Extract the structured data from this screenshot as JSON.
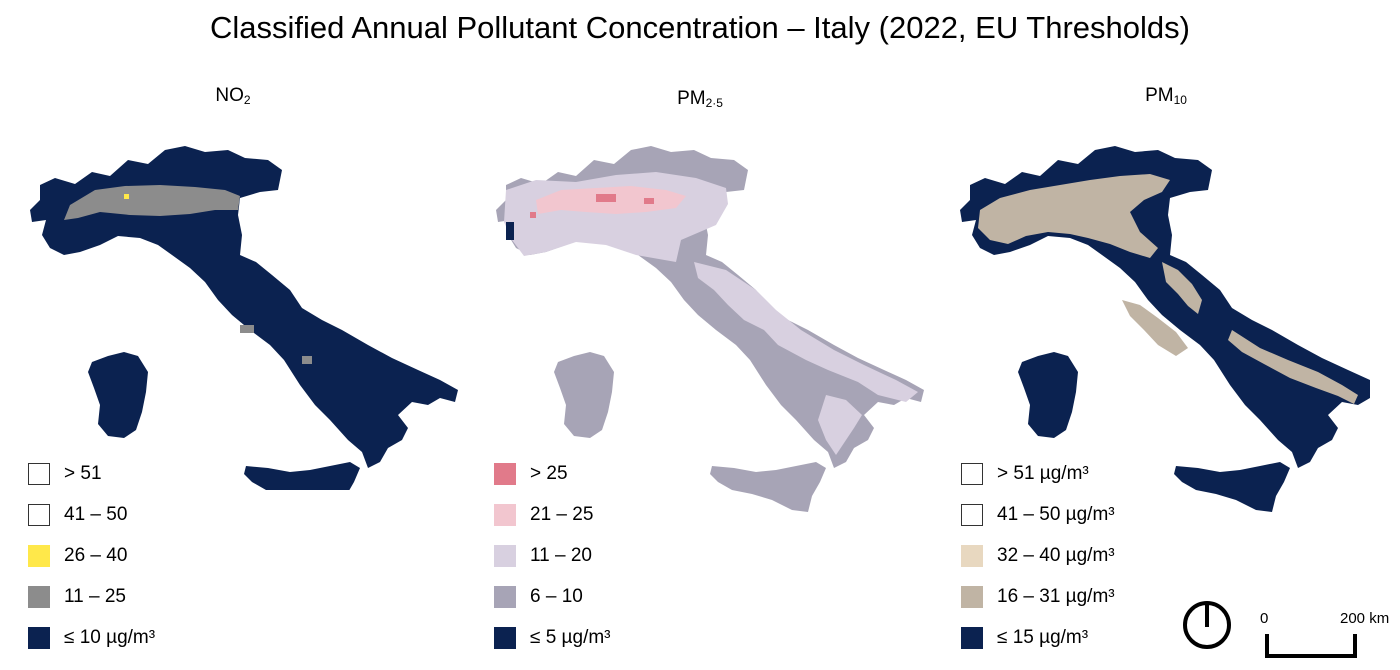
{
  "title": "Classified Annual Pollutant Concentration – Italy (2022, EU Thresholds)",
  "panels": [
    {
      "id": "no2",
      "title_main": "NO",
      "title_sub": "2",
      "colors": {
        "land": "#0b2250",
        "class2": "#8c8c8c",
        "class3": "#ffe84a",
        "class4": "#ffffff"
      },
      "legend": [
        {
          "label": "> 51",
          "color": "#ffffff",
          "outline": true
        },
        {
          "label": "41 – 50",
          "color": "#ffffff",
          "outline": true
        },
        {
          "label": "26 – 40",
          "color": "#ffe84a",
          "outline": false
        },
        {
          "label": "11 – 25",
          "color": "#8c8c8c",
          "outline": false
        },
        {
          "label": "≤ 10 µg/m³",
          "color": "#0b2250",
          "outline": false
        }
      ]
    },
    {
      "id": "pm25",
      "title_main": "PM",
      "title_sub": "2·5",
      "colors": {
        "land": "#a7a4b6",
        "class2": "#d8d0e0",
        "class3": "#f2c6cf",
        "class4": "#e17a8a"
      },
      "legend": [
        {
          "label": "> 25",
          "color": "#e17a8a",
          "outline": false
        },
        {
          "label": "21 – 25",
          "color": "#f2c6cf",
          "outline": false
        },
        {
          "label": "11 – 20",
          "color": "#d8d0e0",
          "outline": false
        },
        {
          "label": "6 – 10",
          "color": "#a7a4b6",
          "outline": false
        },
        {
          "label": "≤ 5 µg/m³",
          "color": "#0b2250",
          "outline": false
        }
      ]
    },
    {
      "id": "pm10",
      "title_main": "PM",
      "title_sub": "10",
      "colors": {
        "land": "#0b2250",
        "class2": "#c0b4a4",
        "class3": "#e8d8c0",
        "class4": "#ffffff"
      },
      "legend": [
        {
          "label": "> 51 µg/m³",
          "color": "#ffffff",
          "outline": true
        },
        {
          "label": "41 – 50 µg/m³",
          "color": "#ffffff",
          "outline": true
        },
        {
          "label": "32 – 40 µg/m³",
          "color": "#e8d8c0",
          "outline": false
        },
        {
          "label": "16 – 31 µg/m³",
          "color": "#c0b4a4",
          "outline": false
        },
        {
          "label": "≤ 15 µg/m³",
          "color": "#0b2250",
          "outline": false
        }
      ]
    }
  ],
  "scalebar": {
    "zero_label": "0",
    "max_label": "200 km"
  },
  "icons": {
    "north_arrow": "north-arrow-icon"
  }
}
